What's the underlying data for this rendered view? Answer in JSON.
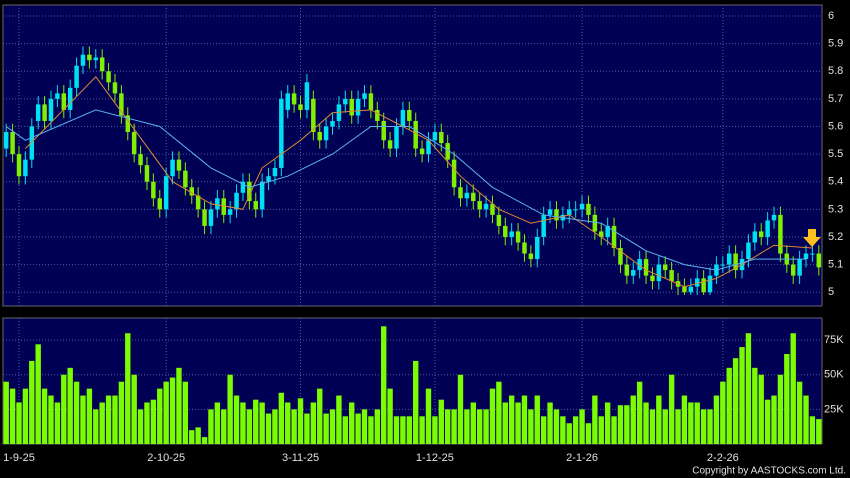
{
  "chart_data": {
    "type": "candlestick",
    "categories": [
      null,
      null,
      "1-9-25",
      null,
      null,
      null,
      null,
      null,
      null,
      null,
      null,
      null,
      null,
      null,
      null,
      null,
      null,
      null,
      null,
      null,
      null,
      null,
      null,
      null,
      null,
      "2-10-25",
      null,
      null,
      null,
      null,
      null,
      null,
      null,
      null,
      null,
      null,
      null,
      null,
      null,
      null,
      null,
      null,
      null,
      null,
      null,
      null,
      "3-11-25",
      null,
      null,
      null,
      null,
      null,
      null,
      null,
      null,
      null,
      null,
      null,
      null,
      null,
      null,
      null,
      null,
      null,
      null,
      null,
      null,
      "1-12-25",
      null,
      null,
      null,
      null,
      null,
      null,
      null,
      null,
      null,
      null,
      null,
      null,
      null,
      null,
      null,
      null,
      null,
      null,
      null,
      null,
      null,
      null,
      "2-1-26",
      null,
      null,
      null,
      null,
      null,
      null,
      null,
      null,
      null,
      null,
      null,
      null,
      null,
      null,
      null,
      null,
      null,
      null,
      null,
      null,
      null,
      "2-2-26",
      null,
      null,
      null,
      null,
      null,
      null,
      null,
      null,
      null,
      null,
      null,
      null,
      null,
      null,
      null
    ],
    "open": [
      5.52,
      5.58,
      5.5,
      5.42,
      5.48,
      5.62,
      5.68,
      5.62,
      5.7,
      5.72,
      5.66,
      5.74,
      5.82,
      5.86,
      5.84,
      5.85,
      5.8,
      5.76,
      5.72,
      5.64,
      5.58,
      5.5,
      5.46,
      5.4,
      5.34,
      5.3,
      5.42,
      5.48,
      5.44,
      5.38,
      5.35,
      5.3,
      5.24,
      5.3,
      5.34,
      5.28,
      5.3,
      5.36,
      5.4,
      5.33,
      5.3,
      5.4,
      5.42,
      5.45,
      5.66,
      5.72,
      5.68,
      5.66,
      5.7,
      5.58,
      5.55,
      5.6,
      5.62,
      5.68,
      5.7,
      5.64,
      5.7,
      5.72,
      5.66,
      5.62,
      5.55,
      5.52,
      5.6,
      5.66,
      5.62,
      5.52,
      5.5,
      5.55,
      5.58,
      5.54,
      5.48,
      5.38,
      5.34,
      5.36,
      5.33,
      5.3,
      5.32,
      5.28,
      5.24,
      5.2,
      5.22,
      5.18,
      5.14,
      5.12,
      5.2,
      5.28,
      5.3,
      5.26,
      5.28,
      5.3,
      5.3,
      5.32,
      5.28,
      5.22,
      5.2,
      5.24,
      5.16,
      5.1,
      5.06,
      5.08,
      5.12,
      5.06,
      5.04,
      5.1,
      5.08,
      5.04,
      5.02,
      5.0,
      5.02,
      5.05,
      5.0,
      5.06,
      5.1,
      5.1,
      5.14,
      5.08,
      5.12,
      5.18,
      5.22,
      5.2,
      5.26,
      5.28,
      5.14,
      5.1,
      5.06,
      5.12,
      5.14,
      5.14
    ],
    "high": [
      5.61,
      5.61,
      5.53,
      5.51,
      5.63,
      5.71,
      5.71,
      5.73,
      5.75,
      5.75,
      5.77,
      5.85,
      5.89,
      5.89,
      5.88,
      5.88,
      5.83,
      5.79,
      5.75,
      5.67,
      5.61,
      5.53,
      5.49,
      5.43,
      5.37,
      5.45,
      5.51,
      5.51,
      5.47,
      5.41,
      5.38,
      5.33,
      5.33,
      5.37,
      5.37,
      5.33,
      5.39,
      5.43,
      5.43,
      5.36,
      5.43,
      5.45,
      5.48,
      5.73,
      5.75,
      5.75,
      5.71,
      5.79,
      5.73,
      5.61,
      5.63,
      5.65,
      5.71,
      5.73,
      5.73,
      5.73,
      5.75,
      5.75,
      5.69,
      5.65,
      5.58,
      5.63,
      5.69,
      5.69,
      5.65,
      5.55,
      5.58,
      5.61,
      5.61,
      5.57,
      5.51,
      5.41,
      5.39,
      5.39,
      5.36,
      5.35,
      5.35,
      5.31,
      5.27,
      5.25,
      5.25,
      5.21,
      5.17,
      5.23,
      5.31,
      5.33,
      5.33,
      5.31,
      5.33,
      5.33,
      5.35,
      5.35,
      5.31,
      5.25,
      5.27,
      5.27,
      5.19,
      5.13,
      5.11,
      5.15,
      5.15,
      5.09,
      5.13,
      5.13,
      5.11,
      5.07,
      5.05,
      5.05,
      5.08,
      5.08,
      5.09,
      5.13,
      5.13,
      5.17,
      5.17,
      5.15,
      5.21,
      5.25,
      5.25,
      5.29,
      5.31,
      5.31,
      5.17,
      5.13,
      5.15,
      5.17,
      5.17,
      5.17
    ],
    "low": [
      5.49,
      5.47,
      5.39,
      5.39,
      5.45,
      5.59,
      5.59,
      5.59,
      5.67,
      5.63,
      5.63,
      5.71,
      5.79,
      5.81,
      5.81,
      5.77,
      5.73,
      5.69,
      5.61,
      5.55,
      5.47,
      5.43,
      5.37,
      5.31,
      5.27,
      5.27,
      5.39,
      5.41,
      5.35,
      5.32,
      5.27,
      5.21,
      5.21,
      5.27,
      5.25,
      5.25,
      5.27,
      5.33,
      5.3,
      5.27,
      5.27,
      5.37,
      5.39,
      5.42,
      5.63,
      5.65,
      5.63,
      5.63,
      5.55,
      5.52,
      5.52,
      5.57,
      5.59,
      5.65,
      5.61,
      5.61,
      5.67,
      5.63,
      5.59,
      5.52,
      5.49,
      5.49,
      5.57,
      5.59,
      5.49,
      5.47,
      5.47,
      5.52,
      5.51,
      5.45,
      5.35,
      5.31,
      5.31,
      5.3,
      5.27,
      5.27,
      5.25,
      5.21,
      5.17,
      5.17,
      5.15,
      5.11,
      5.09,
      5.09,
      5.17,
      5.25,
      5.23,
      5.23,
      5.25,
      5.27,
      5.27,
      5.25,
      5.19,
      5.17,
      5.17,
      5.13,
      5.07,
      5.03,
      5.03,
      5.05,
      5.03,
      5.01,
      5.01,
      5.05,
      5.01,
      4.99,
      4.99,
      4.99,
      4.99,
      4.99,
      4.99,
      5.03,
      5.07,
      5.07,
      5.05,
      5.05,
      5.09,
      5.15,
      5.17,
      5.17,
      5.23,
      5.11,
      5.07,
      5.03,
      5.03,
      5.09,
      5.11,
      5.06
    ],
    "close": [
      5.58,
      5.5,
      5.42,
      5.48,
      5.6,
      5.68,
      5.62,
      5.7,
      5.72,
      5.66,
      5.74,
      5.82,
      5.86,
      5.84,
      5.85,
      5.8,
      5.76,
      5.72,
      5.64,
      5.58,
      5.5,
      5.46,
      5.4,
      5.34,
      5.3,
      5.42,
      5.48,
      5.44,
      5.38,
      5.35,
      5.3,
      5.24,
      5.3,
      5.34,
      5.28,
      5.3,
      5.36,
      5.4,
      5.33,
      5.3,
      5.4,
      5.42,
      5.45,
      5.7,
      5.72,
      5.68,
      5.66,
      5.76,
      5.58,
      5.55,
      5.6,
      5.62,
      5.68,
      5.7,
      5.64,
      5.7,
      5.72,
      5.66,
      5.62,
      5.55,
      5.52,
      5.6,
      5.66,
      5.62,
      5.52,
      5.5,
      5.55,
      5.58,
      5.54,
      5.48,
      5.38,
      5.34,
      5.36,
      5.33,
      5.3,
      5.32,
      5.28,
      5.24,
      5.2,
      5.22,
      5.18,
      5.14,
      5.12,
      5.2,
      5.28,
      5.3,
      5.26,
      5.28,
      5.3,
      5.3,
      5.32,
      5.28,
      5.22,
      5.2,
      5.24,
      5.16,
      5.1,
      5.06,
      5.08,
      5.12,
      5.06,
      5.04,
      5.1,
      5.08,
      5.04,
      5.02,
      5.0,
      5.02,
      5.05,
      5.0,
      5.06,
      5.1,
      5.1,
      5.14,
      5.08,
      5.12,
      5.18,
      5.22,
      5.2,
      5.26,
      5.28,
      5.14,
      5.1,
      5.06,
      5.12,
      5.14,
      5.14,
      5.09
    ],
    "volume": [
      45000,
      40000,
      30000,
      40000,
      60000,
      72000,
      40000,
      35000,
      30000,
      50000,
      55000,
      45000,
      35000,
      40000,
      25000,
      30000,
      35000,
      35000,
      45000,
      80000,
      50000,
      25000,
      30000,
      32000,
      40000,
      45000,
      48000,
      55000,
      45000,
      10000,
      12000,
      5000,
      25000,
      30000,
      25000,
      50000,
      35000,
      30000,
      25000,
      32000,
      30000,
      22000,
      25000,
      37000,
      30000,
      25000,
      33000,
      22000,
      30000,
      40000,
      22000,
      25000,
      35000,
      20000,
      30000,
      22000,
      25000,
      20000,
      25000,
      85000,
      40000,
      20000,
      20000,
      20000,
      60000,
      20000,
      40000,
      20000,
      32000,
      25000,
      25000,
      50000,
      25000,
      30000,
      25000,
      25000,
      40000,
      45000,
      30000,
      35000,
      30000,
      35000,
      25000,
      35000,
      20000,
      30000,
      25000,
      20000,
      15000,
      20000,
      25000,
      15000,
      35000,
      20000,
      30000,
      20000,
      28000,
      28000,
      35000,
      45000,
      30000,
      25000,
      35000,
      25000,
      50000,
      25000,
      35000,
      30000,
      30000,
      25000,
      25000,
      35000,
      45000,
      55000,
      62000,
      70000,
      80000,
      55000,
      50000,
      32000,
      35000,
      50000,
      65000,
      80000,
      45000,
      35000,
      20000,
      18000
    ],
    "up_color": "#00e0f0",
    "down_color": "#80f000",
    "volume_color": "#7cfc00",
    "moving_averages": [
      {
        "color": "#e08a30",
        "index": [
          3,
          14,
          26,
          32,
          37,
          40,
          46,
          51,
          57,
          62,
          66,
          71,
          77,
          82,
          88,
          93,
          100,
          106,
          111,
          115,
          120,
          126
        ],
        "values": [
          5.52,
          5.78,
          5.4,
          5.32,
          5.3,
          5.45,
          5.55,
          5.65,
          5.66,
          5.6,
          5.55,
          5.42,
          5.3,
          5.25,
          5.28,
          5.2,
          5.08,
          5.02,
          5.05,
          5.1,
          5.17,
          5.16
        ]
      },
      {
        "color": "#5ab4f0",
        "index": [
          0,
          3,
          8,
          14,
          24,
          32,
          38,
          44,
          51,
          57,
          63,
          70,
          76,
          84,
          93,
          100,
          106,
          111,
          117,
          125
        ],
        "values": [
          5.6,
          5.55,
          5.6,
          5.66,
          5.6,
          5.45,
          5.38,
          5.42,
          5.5,
          5.6,
          5.6,
          5.5,
          5.38,
          5.28,
          5.25,
          5.15,
          5.1,
          5.08,
          5.12,
          5.12
        ]
      }
    ],
    "ylim": [
      4.95,
      6.04
    ],
    "yticks": [
      5,
      5.1,
      5.2,
      5.3,
      5.4,
      5.5,
      5.6,
      5.7,
      5.8,
      5.9,
      6
    ],
    "volume_ylim": [
      0,
      91000
    ],
    "volume_yticks": [
      {
        "value": 25000,
        "label": "25K"
      },
      {
        "value": 50000,
        "label": "50K"
      },
      {
        "value": 75000,
        "label": "75K"
      }
    ],
    "grid": true,
    "copyright": "Copyright by AASTOCKS.com Ltd."
  }
}
